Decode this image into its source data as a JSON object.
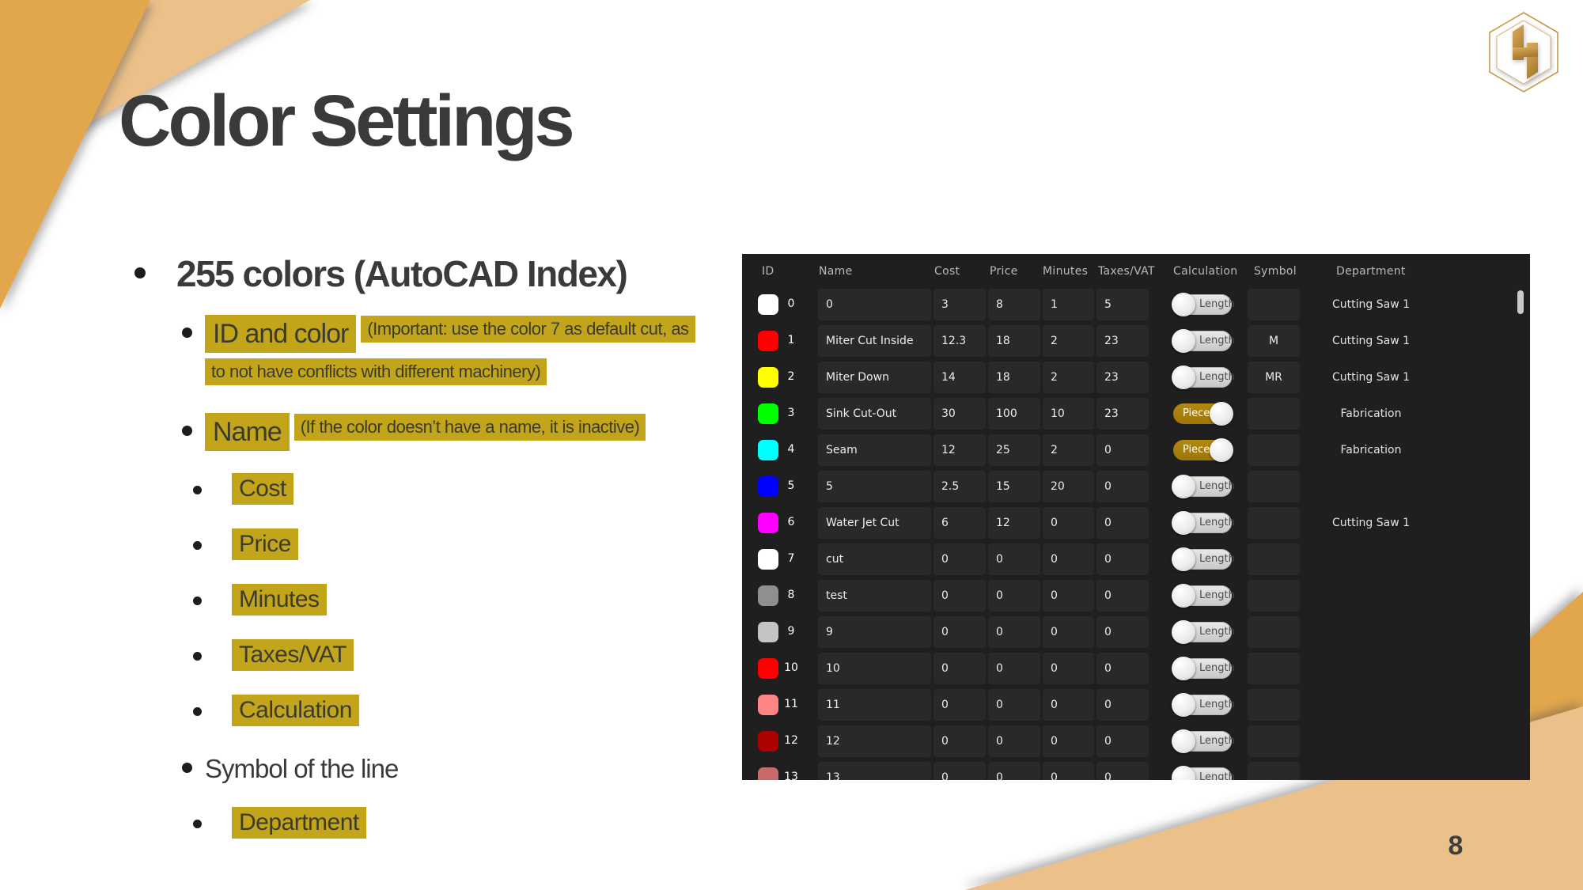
{
  "slide": {
    "title": "Color Settings",
    "page_number": "8"
  },
  "colors": {
    "highlight": "#c2a51b",
    "corner_tan": "#ecc189",
    "corner_gold": "#e2a74e",
    "table_background": "#1f1f1f",
    "piece_toggle": "#a8800b"
  },
  "logo": {
    "icon": "hexagon-h-logo"
  },
  "bullets": {
    "b0": {
      "text": "255 colors (AutoCAD Index)"
    },
    "b1": {
      "text": "ID and color",
      "note_line1": "(Important: use the color 7 as default cut, as",
      "note_line2": "to not have conflicts with different machinery)"
    },
    "b2": {
      "text": "Name",
      "note": "(If the color doesn’t have a name, it is inactive)"
    },
    "b3": {
      "text": "Cost"
    },
    "b4": {
      "text": "Price"
    },
    "b5": {
      "text": "Minutes"
    },
    "b6": {
      "text": "Taxes/VAT"
    },
    "b7": {
      "text": "Calculation"
    },
    "b8": {
      "text": "Symbol of the line"
    },
    "b9": {
      "text": "Department"
    }
  },
  "table": {
    "columns": [
      "ID",
      "Name",
      "Cost",
      "Price",
      "Minutes",
      "Taxes/VAT",
      "Calculation",
      "Symbol",
      "Department"
    ],
    "rows": [
      {
        "color": "#ffffff",
        "id": "0",
        "name": "0",
        "cost": "3",
        "price": "8",
        "minutes": "1",
        "taxes": "5",
        "calculation": "Length",
        "symbol": "",
        "department": "Cutting Saw 1"
      },
      {
        "color": "#ff0000",
        "id": "1",
        "name": "Miter Cut Inside",
        "cost": "12.3",
        "price": "18",
        "minutes": "2",
        "taxes": "23",
        "calculation": "Length",
        "symbol": "M",
        "department": "Cutting Saw 1"
      },
      {
        "color": "#ffff00",
        "id": "2",
        "name": "Miter Down",
        "cost": "14",
        "price": "18",
        "minutes": "2",
        "taxes": "23",
        "calculation": "Length",
        "symbol": "MR",
        "department": "Cutting Saw 1"
      },
      {
        "color": "#00ff00",
        "id": "3",
        "name": "Sink Cut-Out",
        "cost": "30",
        "price": "100",
        "minutes": "10",
        "taxes": "23",
        "calculation": "Piece",
        "symbol": "",
        "department": "Fabrication"
      },
      {
        "color": "#00ffff",
        "id": "4",
        "name": "Seam",
        "cost": "12",
        "price": "25",
        "minutes": "2",
        "taxes": "0",
        "calculation": "Piece",
        "symbol": "",
        "department": "Fabrication"
      },
      {
        "color": "#0000ff",
        "id": "5",
        "name": "5",
        "cost": "2.5",
        "price": "15",
        "minutes": "20",
        "taxes": "0",
        "calculation": "Length",
        "symbol": "",
        "department": ""
      },
      {
        "color": "#ff00ff",
        "id": "6",
        "name": "Water Jet Cut",
        "cost": "6",
        "price": "12",
        "minutes": "0",
        "taxes": "0",
        "calculation": "Length",
        "symbol": "",
        "department": "Cutting Saw 1"
      },
      {
        "color": "#ffffff",
        "id": "7",
        "name": "cut",
        "cost": "0",
        "price": "0",
        "minutes": "0",
        "taxes": "0",
        "calculation": "Length",
        "symbol": "",
        "department": ""
      },
      {
        "color": "#8f8f8f",
        "id": "8",
        "name": "test",
        "cost": "0",
        "price": "0",
        "minutes": "0",
        "taxes": "0",
        "calculation": "Length",
        "symbol": "",
        "department": ""
      },
      {
        "color": "#c4c4c4",
        "id": "9",
        "name": "9",
        "cost": "0",
        "price": "0",
        "minutes": "0",
        "taxes": "0",
        "calculation": "Length",
        "symbol": "",
        "department": ""
      },
      {
        "color": "#ff0000",
        "id": "10",
        "name": "10",
        "cost": "0",
        "price": "0",
        "minutes": "0",
        "taxes": "0",
        "calculation": "Length",
        "symbol": "",
        "department": ""
      },
      {
        "color": "#ff8585",
        "id": "11",
        "name": "11",
        "cost": "0",
        "price": "0",
        "minutes": "0",
        "taxes": "0",
        "calculation": "Length",
        "symbol": "",
        "department": ""
      },
      {
        "color": "#ad0000",
        "id": "12",
        "name": "12",
        "cost": "0",
        "price": "0",
        "minutes": "0",
        "taxes": "0",
        "calculation": "Length",
        "symbol": "",
        "department": ""
      },
      {
        "color": "#c76a6a",
        "id": "13",
        "name": "13",
        "cost": "0",
        "price": "0",
        "minutes": "0",
        "taxes": "0",
        "calculation": "Length",
        "symbol": "",
        "department": ""
      }
    ]
  }
}
